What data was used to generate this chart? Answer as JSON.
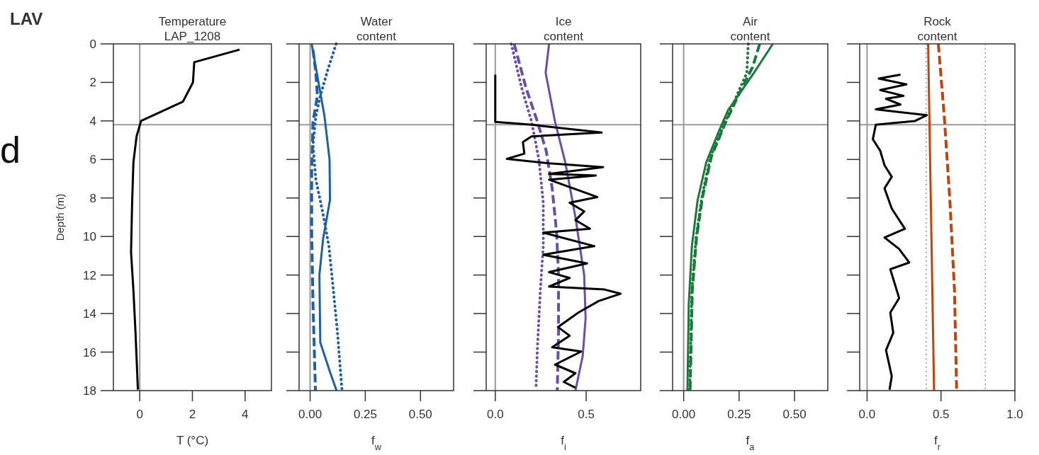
{
  "chart_data": [
    {
      "type": "line",
      "title": "Temperature\nLAP_1208",
      "xlabel": "T (°C)",
      "ylabel": "Depth (m)",
      "annotations": [
        "LAV",
        "d"
      ],
      "xlim": [
        -1,
        5
      ],
      "xticks": [
        0,
        2,
        4
      ],
      "ylim": [
        18,
        0
      ],
      "yticks": [
        0,
        2,
        4,
        6,
        8,
        10,
        12,
        14,
        16,
        18
      ],
      "grid": false,
      "ref_lines": [
        {
          "axis": "x",
          "value": 0,
          "color": "#999999",
          "line_style": "solid"
        },
        {
          "axis": "y",
          "value": 4.2,
          "color": "#999999",
          "line_style": "solid"
        }
      ],
      "series": [
        {
          "color": "#000000",
          "line_style": "solid",
          "x": [
            3.79,
            2.07,
            2.02,
            1.64,
            0.05,
            -0.12,
            -0.24,
            -0.29,
            -0.33,
            -0.24,
            -0.16,
            -0.07
          ],
          "values": [
            0.3,
            0.95,
            2.0,
            3.0,
            4.0,
            4.8,
            6.15,
            8.3,
            10.8,
            12.8,
            15,
            17.95
          ]
        }
      ]
    },
    {
      "type": "line",
      "title": "Water\ncontent",
      "xlabel": "f$_{w}$",
      "xlim": [
        -0.05,
        0.65
      ],
      "xticks": [
        {
          "value": 0,
          "label": "0.00"
        },
        0.25,
        {
          "value": 0.5,
          "label": "0.50"
        }
      ],
      "ylim": [
        18,
        0
      ],
      "yticks": [
        0,
        2,
        4,
        6,
        8,
        10,
        12,
        14,
        16,
        18
      ],
      "tick_labels": "x",
      "grid": false,
      "ref_lines": [
        {
          "axis": "x",
          "value": 0,
          "color": "#999999",
          "line_style": "solid"
        },
        {
          "axis": "y",
          "value": 4.2,
          "color": "#999999",
          "line_style": "solid"
        }
      ],
      "series": [
        {
          "color": "#1f5fa6",
          "line_style": "solid",
          "x": [
            0.007,
            0.065,
            0.088,
            0.09,
            0.059,
            0.042,
            0.046,
            0.092,
            0.12
          ],
          "values": [
            0,
            3.75,
            6,
            8.1,
            10.1,
            12,
            15.5,
            17.1,
            18
          ]
        },
        {
          "color": "#1f5fa6",
          "line_style": "dotted",
          "x": [
            0.118,
            0.08,
            0.046,
            0.026,
            0.013,
            0.026,
            0.059,
            0.085,
            0.105,
            0.124,
            0.144
          ],
          "values": [
            0,
            1.35,
            2.7,
            3.75,
            5.25,
            7.05,
            8.85,
            10.5,
            12.75,
            15,
            17.9
          ]
        },
        {
          "color": "#1f5fa6",
          "line_style": "dashed",
          "x": [
            0.013,
            0.026,
            0.033,
            0.013,
            0.007,
            0.007,
            0.013,
            0.024
          ],
          "values": [
            0.3,
            1.5,
            2.7,
            4.05,
            6.75,
            9.75,
            13.5,
            18
          ]
        }
      ]
    },
    {
      "type": "line",
      "title": "Ice\ncontent",
      "xlabel": "f$_{i}$",
      "xlim": [
        -0.05,
        0.8
      ],
      "xticks": [
        {
          "value": 0,
          "label": "0.0"
        },
        0.5
      ],
      "ylim": [
        18,
        0
      ],
      "yticks": [
        0,
        2,
        4,
        6,
        8,
        10,
        12,
        14,
        16,
        18
      ],
      "tick_labels": "x",
      "grid": false,
      "ref_lines": [
        {
          "axis": "x",
          "value": 0,
          "color": "#999999",
          "line_style": "solid"
        },
        {
          "axis": "y",
          "value": 4.2,
          "color": "#999999",
          "line_style": "solid"
        }
      ],
      "series": [
        {
          "color": "#6a4fa8",
          "line_style": "solid",
          "x": [
            0.296,
            0.277,
            0.329,
            0.385,
            0.441,
            0.489,
            0.497,
            0.481,
            0.441
          ],
          "values": [
            0,
            1.5,
            4.05,
            6.15,
            9,
            12,
            14.25,
            16.2,
            18
          ]
        },
        {
          "color": "#6a4fa8",
          "line_style": "dashed",
          "x": [
            0.104,
            0.168,
            0.232,
            0.28,
            0.313,
            0.337,
            0.348,
            0.348,
            0.341
          ],
          "values": [
            0,
            2.25,
            4.05,
            5.55,
            7.5,
            9.75,
            12,
            15,
            18
          ]
        },
        {
          "color": "#6a4fa8",
          "line_style": "dotted",
          "x": [
            0.088,
            0.144,
            0.2,
            0.24,
            0.264,
            0.264,
            0.248,
            0.232,
            0.224
          ],
          "values": [
            0,
            2.25,
            4.05,
            6,
            8.25,
            10.5,
            12.75,
            15.75,
            17.9
          ]
        },
        {
          "color": "#000000",
          "line_style": "solid",
          "x": [
            0,
            0,
            0.2,
            0.585,
            0.2,
            0.152,
            0.16,
            0.064,
            0.296,
            0.593,
            0.296,
            0.553,
            0.296,
            0.561,
            0.409,
            0.489,
            0.441,
            0.521,
            0.264,
            0.545,
            0.264,
            0.505,
            0.296,
            0.409,
            0.296,
            0.6,
            0.689,
            0.569,
            0.457,
            0.345,
            0.409,
            0.313,
            0.473,
            0.329,
            0.441,
            0.377,
            0.441
          ],
          "values": [
            1.6,
            4.05,
            4.2,
            4.6,
            4.8,
            5.1,
            5.7,
            5.97,
            6.2,
            6.4,
            6.75,
            6.83,
            7.05,
            7.95,
            8.25,
            8.7,
            9.15,
            9.6,
            9.8,
            10.5,
            10.95,
            11.4,
            11.85,
            12.15,
            12.6,
            12.75,
            12.97,
            13.35,
            13.95,
            14.7,
            15.15,
            15.75,
            15.97,
            16.65,
            17.1,
            17.55,
            17.85
          ]
        }
      ]
    },
    {
      "type": "line",
      "title": "Air\ncontent",
      "xlabel": "f$_{a}$",
      "xlim": [
        -0.05,
        0.65
      ],
      "xticks": [
        {
          "value": 0,
          "label": "0.00"
        },
        0.25,
        {
          "value": 0.5,
          "label": "0.50"
        }
      ],
      "ylim": [
        18,
        0
      ],
      "yticks": [
        0,
        2,
        4,
        6,
        8,
        10,
        12,
        14,
        16,
        18
      ],
      "tick_labels": "x",
      "grid": false,
      "ref_lines": [
        {
          "axis": "x",
          "value": 0,
          "color": "#999999",
          "line_style": "solid"
        },
        {
          "axis": "y",
          "value": 4.2,
          "color": "#999999",
          "line_style": "solid"
        }
      ],
      "series": [
        {
          "color": "#1a7a3a",
          "line_style": "solid",
          "x": [
            0.402,
            0.317,
            0.2,
            0.16,
            0.102,
            0.063,
            0.037,
            0.023,
            0.017
          ],
          "values": [
            0,
            1.5,
            3.45,
            4.5,
            6.15,
            8.1,
            10.5,
            13.5,
            18
          ]
        },
        {
          "color": "#1a7a3a",
          "line_style": "dashed",
          "x": [
            0.343,
            0.311,
            0.252,
            0.19,
            0.125,
            0.085,
            0.058,
            0.039,
            0.029
          ],
          "values": [
            0,
            1.2,
            2.55,
            4.05,
            5.85,
            7.95,
            10.05,
            12.75,
            18
          ]
        },
        {
          "color": "#1a7a3a",
          "line_style": "dotted",
          "x": [
            0.291,
            0.285,
            0.239,
            0.187,
            0.121,
            0.082,
            0.056,
            0.037,
            0.027
          ],
          "values": [
            0,
            1.5,
            2.7,
            4.05,
            5.85,
            7.95,
            10.05,
            12.75,
            18
          ]
        }
      ]
    },
    {
      "type": "line",
      "title": "Rock\ncontent",
      "xlabel": "f$_{r}$",
      "xlim": [
        -0.05,
        1.0
      ],
      "xticks": [
        {
          "value": 0,
          "label": "0.0"
        },
        0.5,
        {
          "value": 1,
          "label": "1.0"
        }
      ],
      "ylim": [
        18,
        0
      ],
      "yticks": [
        0,
        2,
        4,
        6,
        8,
        10,
        12,
        14,
        16,
        18
      ],
      "tick_labels": "x",
      "grid": false,
      "ref_lines": [
        {
          "axis": "x",
          "value": 0,
          "color": "#999999",
          "line_style": "solid"
        },
        {
          "axis": "y",
          "value": 4.2,
          "color": "#999999",
          "line_style": "solid"
        },
        {
          "axis": "x",
          "value": 0.4,
          "color": "#999999",
          "line_style": "dotted"
        },
        {
          "axis": "x",
          "value": 0.8,
          "color": "#999999",
          "line_style": "dotted"
        }
      ],
      "series": [
        {
          "color": "#c0440c",
          "line_style": "solid",
          "x": [
            0.413,
            0.453
          ],
          "values": [
            0,
            18
          ]
        },
        {
          "color": "#c0440c",
          "line_style": "dashed",
          "x": [
            0.482,
            0.522,
            0.561,
            0.591,
            0.606
          ],
          "values": [
            0,
            3.75,
            8.25,
            12.75,
            18
          ]
        },
        {
          "color": "#000000",
          "line_style": "solid",
          "x": [
            0.226,
            0.079,
            0.266,
            0.089,
            0.246,
            0.128,
            0.226,
            0.059,
            0.404,
            0.325,
            0.059,
            0.039,
            0.089,
            0.118,
            0.167,
            0.118,
            0.167,
            0.256,
            0.118,
            0.217,
            0.285,
            0.157,
            0.217,
            0.157,
            0.177,
            0.128,
            0.167,
            0.152
          ],
          "values": [
            1.6,
            1.8,
            2.1,
            2.4,
            2.7,
            2.85,
            3.15,
            3.4,
            3.7,
            4.0,
            4.2,
            4.95,
            5.55,
            6.3,
            6.9,
            7.5,
            8.55,
            9.6,
            10.05,
            10.65,
            11.35,
            11.7,
            13.2,
            13.95,
            15.0,
            15.9,
            17.25,
            17.95
          ]
        }
      ]
    }
  ]
}
